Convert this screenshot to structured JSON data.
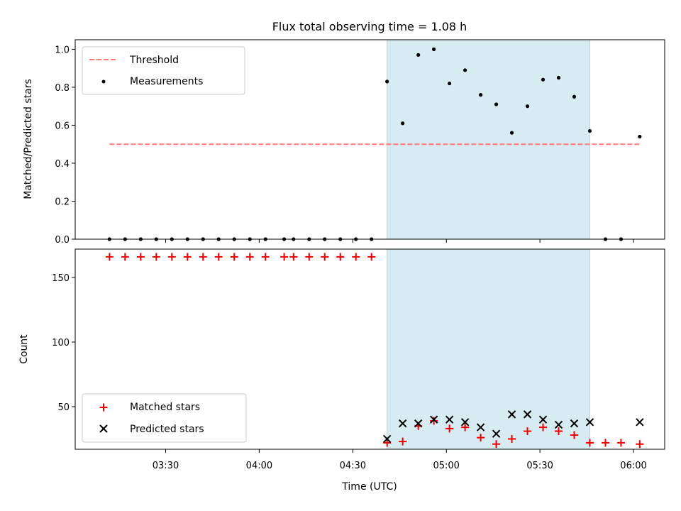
{
  "figure": {
    "title": "Flux total observing time = 1.08 h"
  },
  "colors": {
    "threshold": "#ff7b7b",
    "measurement": "#000000",
    "matched": "#ee0000",
    "predicted": "#000000",
    "observing_span": "#add8e6"
  },
  "chart_data": [
    {
      "type": "scatter",
      "name": "ratio",
      "title": "Flux total observing time = 1.08 h",
      "xlabel": "",
      "ylabel": "Matched/Predicted stars",
      "ylim": [
        0,
        1.05
      ],
      "yticks": [
        0.0,
        0.2,
        0.4,
        0.6,
        0.8,
        1.0
      ],
      "ytick_labels": [
        "0.0",
        "0.2",
        "0.4",
        "0.6",
        "0.8",
        "1.0"
      ],
      "xlim": [
        "03:01",
        "06:10"
      ],
      "shaded_span": [
        "04:41",
        "05:46"
      ],
      "threshold": {
        "name": "Threshold",
        "value": 0.5,
        "x": [
          "03:12",
          "06:02"
        ]
      },
      "series": [
        {
          "name": "Measurements",
          "x": [
            "03:12",
            "03:17",
            "03:22",
            "03:27",
            "03:32",
            "03:37",
            "03:42",
            "03:47",
            "03:52",
            "03:57",
            "04:02",
            "04:08",
            "04:11",
            "04:16",
            "04:21",
            "04:26",
            "04:31",
            "04:36",
            "04:41",
            "04:46",
            "04:51",
            "04:56",
            "05:01",
            "05:06",
            "05:11",
            "05:16",
            "05:21",
            "05:26",
            "05:31",
            "05:36",
            "05:41",
            "05:46",
            "05:51",
            "05:56",
            "06:02"
          ],
          "y": [
            0,
            0,
            0,
            0,
            0,
            0,
            0,
            0,
            0,
            0,
            0,
            0,
            0,
            0,
            0,
            0,
            0,
            0,
            0.83,
            0.61,
            0.97,
            1.0,
            0.82,
            0.89,
            0.76,
            0.71,
            0.56,
            0.7,
            0.84,
            0.85,
            0.75,
            0.57,
            0,
            0,
            0.54
          ]
        }
      ],
      "legend": [
        "Threshold",
        "Measurements"
      ],
      "legend_position": "upper-left"
    },
    {
      "type": "scatter",
      "name": "counts",
      "xlabel": "Time (UTC)",
      "ylabel": "Count",
      "ylim": [
        17,
        172
      ],
      "yticks": [
        50,
        100,
        150
      ],
      "ytick_labels": [
        "50",
        "100",
        "150"
      ],
      "xlim": [
        "03:01",
        "06:10"
      ],
      "xticks": [
        "03:30",
        "04:00",
        "04:30",
        "05:00",
        "05:30",
        "06:00"
      ],
      "shaded_span": [
        "04:41",
        "05:46"
      ],
      "series": [
        {
          "name": "Matched stars",
          "marker": "plus",
          "x": [
            "03:12",
            "03:17",
            "03:22",
            "03:27",
            "03:32",
            "03:37",
            "03:42",
            "03:47",
            "03:52",
            "03:57",
            "04:02",
            "04:08",
            "04:11",
            "04:16",
            "04:21",
            "04:26",
            "04:31",
            "04:36",
            "04:41",
            "04:46",
            "04:51",
            "04:56",
            "05:01",
            "05:06",
            "05:11",
            "05:16",
            "05:21",
            "05:26",
            "05:31",
            "05:36",
            "05:41",
            "05:46",
            "05:51",
            "05:56",
            "06:02"
          ],
          "y": [
            166,
            166,
            166,
            166,
            166,
            166,
            166,
            166,
            166,
            166,
            166,
            166,
            166,
            166,
            166,
            166,
            166,
            166,
            22,
            23,
            35,
            39,
            33,
            34,
            26,
            21,
            25,
            31,
            34,
            31,
            28,
            22,
            22,
            22,
            21
          ]
        },
        {
          "name": "Predicted stars",
          "marker": "x",
          "x": [
            "04:41",
            "04:46",
            "04:51",
            "04:56",
            "05:01",
            "05:06",
            "05:11",
            "05:16",
            "05:21",
            "05:26",
            "05:31",
            "05:36",
            "05:41",
            "05:46",
            "06:02"
          ],
          "y": [
            25,
            37,
            37,
            40,
            40,
            38,
            34,
            29,
            44,
            44,
            40,
            36,
            37,
            38,
            38
          ]
        }
      ],
      "legend": [
        "Matched stars",
        "Predicted stars"
      ],
      "legend_position": "lower-left"
    }
  ]
}
